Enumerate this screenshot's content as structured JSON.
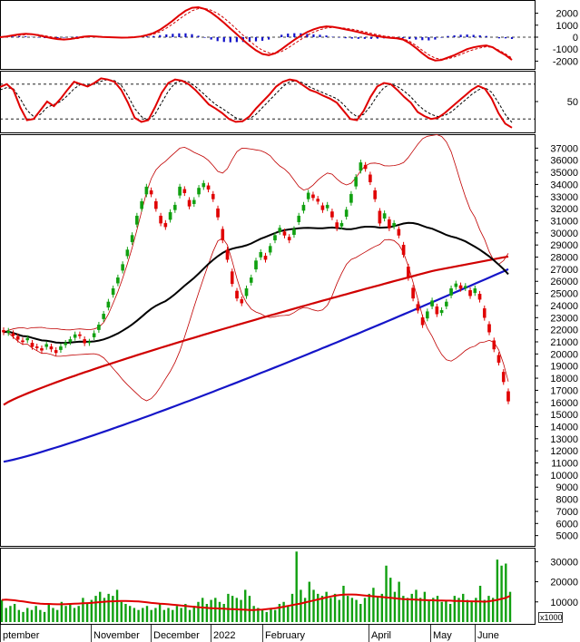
{
  "chart_data": {
    "type": "candlestick",
    "panels": {
      "macd": {
        "type": "bar+line",
        "y_ticks": [
          "2000",
          "1000",
          "0",
          "-1000",
          "-2000"
        ],
        "ylim": [
          -2500,
          2800
        ],
        "macd": [
          0,
          60,
          150,
          230,
          280,
          250,
          160,
          40,
          -80,
          -160,
          -200,
          -150,
          -60,
          40,
          80,
          60,
          20,
          0,
          -20,
          -40,
          -30,
          0,
          60,
          180,
          350,
          620,
          980,
          1380,
          1820,
          2200,
          2450,
          2500,
          2350,
          2050,
          1650,
          1200,
          720,
          240,
          -250,
          -700,
          -1100,
          -1400,
          -1500,
          -1350,
          -1000,
          -600,
          -220,
          120,
          420,
          650,
          820,
          900,
          860,
          760,
          650,
          540,
          420,
          300,
          180,
          80,
          0,
          -60,
          -100,
          -200,
          -500,
          -900,
          -1350,
          -1750,
          -1950,
          -1900,
          -1700,
          -1500,
          -1250,
          -1000,
          -850,
          -750,
          -700,
          -850,
          -1200,
          -1500,
          -1900
        ],
        "signal": [
          0,
          30,
          90,
          150,
          210,
          230,
          200,
          120,
          20,
          -80,
          -150,
          -170,
          -120,
          -30,
          40,
          60,
          40,
          15,
          -10,
          -30,
          -30,
          -10,
          30,
          120,
          250,
          450,
          750,
          1100,
          1500,
          1880,
          2200,
          2380,
          2400,
          2250,
          1980,
          1600,
          1150,
          650,
          150,
          -320,
          -750,
          -1100,
          -1300,
          -1350,
          -1200,
          -900,
          -550,
          -200,
          150,
          420,
          620,
          760,
          820,
          800,
          740,
          660,
          560,
          440,
          320,
          200,
          100,
          30,
          -30,
          -120,
          -350,
          -700,
          -1100,
          -1480,
          -1750,
          -1850,
          -1800,
          -1650,
          -1450,
          -1220,
          -1040,
          -900,
          -800,
          -850,
          -1100,
          -1400,
          -1750
        ],
        "histogram": [
          0,
          30,
          60,
          80,
          70,
          20,
          -40,
          -80,
          -100,
          -80,
          -50,
          20,
          60,
          70,
          40,
          0,
          -20,
          -15,
          -10,
          -10,
          0,
          10,
          30,
          60,
          100,
          170,
          230,
          280,
          320,
          320,
          250,
          120,
          -50,
          -200,
          -330,
          -400,
          -430,
          -410,
          -400,
          -380,
          -350,
          -300,
          -200,
          0,
          200,
          300,
          330,
          320,
          270,
          230,
          200,
          140,
          40,
          -40,
          -90,
          -120,
          -140,
          -140,
          -140,
          -120,
          -100,
          -90,
          -70,
          -80,
          -150,
          -200,
          -250,
          -270,
          -200,
          -50,
          100,
          150,
          200,
          220,
          190,
          150,
          100,
          0,
          -100,
          -100,
          -150
        ]
      },
      "stochastic": {
        "type": "line",
        "y_ticks": [
          "50"
        ],
        "ylim": [
          0,
          100
        ],
        "upper_band": 80,
        "lower_band": 20,
        "k": [
          75,
          80,
          70,
          40,
          18,
          20,
          35,
          50,
          42,
          55,
          70,
          84,
          80,
          76,
          82,
          90,
          88,
          84,
          70,
          48,
          22,
          15,
          18,
          40,
          65,
          82,
          88,
          86,
          80,
          70,
          58,
          45,
          38,
          30,
          20,
          15,
          16,
          24,
          38,
          50,
          62,
          76,
          84,
          88,
          86,
          78,
          70,
          66,
          60,
          55,
          48,
          34,
          20,
          18,
          34,
          58,
          76,
          82,
          80,
          70,
          58,
          48,
          32,
          25,
          20,
          22,
          30,
          40,
          50,
          60,
          70,
          77,
          72,
          55,
          30,
          12,
          5
        ],
        "d": [
          70,
          74,
          72,
          55,
          35,
          24,
          28,
          40,
          45,
          50,
          60,
          72,
          80,
          78,
          80,
          85,
          88,
          86,
          78,
          60,
          38,
          24,
          18,
          28,
          48,
          68,
          82,
          86,
          84,
          76,
          66,
          55,
          45,
          38,
          30,
          22,
          18,
          20,
          28,
          40,
          52,
          64,
          76,
          84,
          86,
          82,
          75,
          70,
          65,
          60,
          55,
          45,
          32,
          24,
          28,
          42,
          60,
          74,
          80,
          76,
          68,
          58,
          45,
          35,
          28,
          24,
          26,
          32,
          42,
          52,
          62,
          70,
          74,
          66,
          48,
          28,
          14
        ]
      },
      "price": {
        "type": "candlestick",
        "y_ticks": [
          "37000",
          "36000",
          "35000",
          "34000",
          "33000",
          "32000",
          "31000",
          "30000",
          "29000",
          "28000",
          "27000",
          "26000",
          "25000",
          "24000",
          "23000",
          "22000",
          "21000",
          "20000",
          "19000",
          "18000",
          "17000",
          "16000",
          "15000",
          "14000",
          "13000",
          "12000",
          "11000",
          "10000",
          "9000",
          "8000",
          "7000",
          "6000",
          "5000"
        ],
        "ylim": [
          4300,
          38000
        ],
        "closes": [
          21800,
          21900,
          21500,
          21200,
          21000,
          21300,
          20600,
          20500,
          20300,
          20800,
          20400,
          20100,
          20600,
          20900,
          21200,
          21600,
          21500,
          20900,
          21000,
          21700,
          22400,
          23300,
          24300,
          25400,
          26300,
          27400,
          28600,
          29800,
          31400,
          32600,
          33800,
          33200,
          32000,
          30800,
          30500,
          31700,
          32300,
          33800,
          33300,
          32200,
          32700,
          33700,
          34100,
          33600,
          32800,
          31300,
          29400,
          27800,
          25800,
          24600,
          24200,
          25400,
          26300,
          27700,
          28400,
          27800,
          28900,
          29800,
          30400,
          29800,
          29400,
          30300,
          31400,
          32300,
          33300,
          32900,
          32600,
          31900,
          32300,
          31300,
          30400,
          30800,
          31900,
          33200,
          34600,
          35800,
          35300,
          34200,
          32800,
          30800,
          31600,
          30400,
          30800,
          29800,
          28200,
          26300,
          24600,
          23600,
          22400,
          23500,
          24400,
          23300,
          23600,
          24300,
          25400,
          25800,
          25400,
          25600,
          24800,
          25400,
          24500,
          23000,
          21800,
          20400,
          19300,
          17700,
          16100
        ],
        "open_offsets": [
          150,
          -150,
          200,
          250,
          100,
          -150,
          300,
          100,
          150,
          -200,
          200,
          200,
          -250,
          -150,
          -200,
          -250,
          100,
          300,
          -80,
          -300,
          -400,
          -400,
          -450,
          -500,
          -450,
          -500,
          -500,
          -550,
          -700,
          -600,
          -600,
          300,
          600,
          600,
          300,
          -600,
          -400,
          -700,
          300,
          500,
          -300,
          -500,
          -300,
          300,
          400,
          700,
          900,
          800,
          1000,
          600,
          300,
          -600,
          -400,
          -700,
          -400,
          300,
          -500,
          -400,
          -300,
          300,
          250,
          -450,
          -500,
          -450,
          -500,
          250,
          200,
          350,
          -250,
          450,
          450,
          -250,
          -550,
          -700,
          -750,
          -650,
          300,
          600,
          700,
          1000,
          -400,
          700,
          -250,
          500,
          800,
          900,
          850,
          500,
          600,
          -550,
          -450,
          600,
          -200,
          -350,
          -550,
          -250,
          250,
          -150,
          450,
          -350,
          450,
          750,
          650,
          700,
          600,
          800,
          800
        ]
      },
      "volume": {
        "type": "bar+line",
        "unit": "x1000",
        "y_ticks": [
          "30000",
          "20000",
          "10000"
        ],
        "ylim": [
          0,
          36000
        ],
        "values": [
          11000,
          7000,
          8000,
          9000,
          6000,
          5000,
          7000,
          6000,
          8000,
          6000,
          5000,
          9000,
          7000,
          6000,
          10000,
          8000,
          9000,
          7000,
          8000,
          12000,
          9000,
          11000,
          13000,
          15000,
          12000,
          14000,
          13000,
          16000,
          10000,
          9000,
          8000,
          7000,
          6000,
          7000,
          8000,
          6000,
          7000,
          9000,
          6000,
          7000,
          6000,
          8000,
          7000,
          9000,
          6000,
          8000,
          10000,
          12000,
          9000,
          11000,
          12000,
          10000,
          9000,
          14000,
          13000,
          12000,
          11000,
          16000,
          13000,
          8000,
          7000,
          6000,
          5000,
          7000,
          6000,
          9000,
          10000,
          8000,
          14000,
          35000,
          16000,
          12000,
          20000,
          16000,
          14000,
          13000,
          15000,
          12000,
          14000,
          11000,
          18000,
          13000,
          12000,
          11000,
          9000,
          12000,
          14000,
          17000,
          13000,
          14000,
          28000,
          22000,
          15000,
          20000,
          13000,
          12000,
          14000,
          16000,
          12000,
          15000,
          11000,
          12000,
          13000,
          10000,
          11000,
          9000,
          13000,
          12000,
          14000,
          11000,
          10000,
          12000,
          18000,
          11000,
          13000,
          12000,
          31000,
          28000,
          29000,
          15000
        ],
        "ma": [
          11000,
          11100,
          11000,
          10800,
          10500,
          10200,
          9900,
          9600,
          9300,
          9100,
          9000,
          9000,
          8900,
          8800,
          8800,
          8900,
          9000,
          9100,
          9200,
          9300,
          9400,
          9500,
          9700,
          9900,
          10100,
          10200,
          10300,
          10400,
          10500,
          10500,
          10400,
          10300,
          10200,
          10000,
          9800,
          9500,
          9300,
          9100,
          9000,
          8800,
          8600,
          8400,
          8200,
          8000,
          7800,
          7600,
          7400,
          7200,
          7000,
          6900,
          6800,
          6700,
          6600,
          6500,
          6400,
          6300,
          6200,
          6100,
          6000,
          6000,
          6100,
          6200,
          6400,
          6600,
          6900,
          7200,
          7600,
          8000,
          8400,
          8800,
          9200,
          9700,
          10200,
          10700,
          11200,
          11700,
          12200,
          12700,
          13100,
          13400,
          13600,
          13700,
          13700,
          13600,
          13400,
          13200,
          13000,
          12800,
          12600,
          12400,
          12200,
          12000,
          11800,
          11600,
          11400,
          11300,
          11200,
          11100,
          11000,
          10900,
          10800,
          10800,
          10700,
          10700,
          10600,
          10600,
          10500,
          10500,
          10400,
          10300,
          10300,
          10200,
          10200,
          10100,
          10300,
          10600,
          11000,
          11500,
          12000,
          13000
        ]
      }
    },
    "x_labels": [
      "ptember",
      "November",
      "December",
      "2022",
      "February",
      "April",
      "May",
      "June"
    ]
  }
}
